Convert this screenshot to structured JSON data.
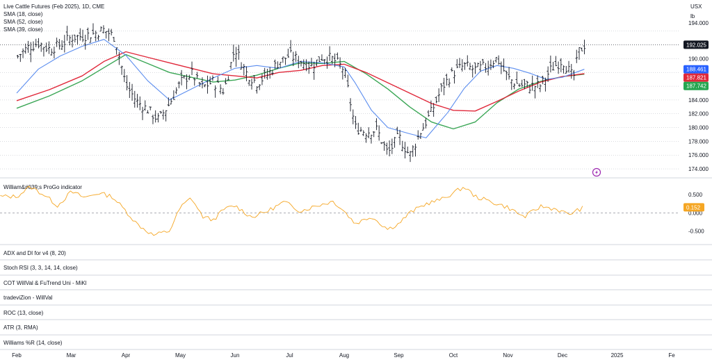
{
  "header": {
    "title": "Live Cattle Futures (Feb 2025), 1D, CME",
    "currency": "USX",
    "unit": "lb"
  },
  "indicators": [
    {
      "label": "SMA (18, close)",
      "color": "#5b8def"
    },
    {
      "label": "SMA (52, close)",
      "color": "#3aa655"
    },
    {
      "label": "SMA (39, close)",
      "color": "#e0283a"
    }
  ],
  "sub_indicator": {
    "label": "William&#039;s ProGo indicator",
    "color": "#f5a623",
    "last_value": "0.152"
  },
  "collapsed_panes": [
    "ADX and DI for v4 (8, 20)",
    "Stoch RSI (3, 3, 14, 14, close)",
    "COT WillVal & FuTrend Uni - MiKl",
    "tradeviZion - WillVal",
    "ROC (13, close)",
    "ATR (3, RMA)",
    "Williams %R (14, close)"
  ],
  "chart_data": [
    {
      "type": "ohlc",
      "title": "Live Cattle Futures (Feb 2025), 1D, CME",
      "price_axis": {
        "ylim": [
          173.5,
          196.5
        ],
        "ticks": [
          "174.000",
          "176.000",
          "178.000",
          "180.000",
          "182.000",
          "184.000",
          "186.000",
          "188.000",
          "190.000"
        ],
        "top_tick": "194.000"
      },
      "time_axis": {
        "labels": [
          "Feb",
          "Mar",
          "Apr",
          "May",
          "Jun",
          "Jul",
          "Aug",
          "Sep",
          "Oct",
          "Nov",
          "Dec",
          "2025",
          "Fe"
        ],
        "positions": [
          0,
          1,
          2,
          3,
          4,
          5,
          6,
          7,
          8,
          9,
          10,
          11,
          12
        ]
      },
      "last_price": {
        "value": 192.025,
        "label": "192.025",
        "color": "#131722"
      },
      "sma_last": [
        {
          "name": "SMA (18, close)",
          "value": 188.461,
          "label": "188.461",
          "color": "#2962ff"
        },
        {
          "name": "SMA (39, close)",
          "value": 187.821,
          "label": "187.821",
          "color": "#e0283a"
        },
        {
          "name": "SMA (52, close)",
          "value": 187.742,
          "label": "187.742",
          "color": "#26a650"
        }
      ],
      "close_path": [
        [
          0,
          190.2
        ],
        [
          0.2,
          191.6
        ],
        [
          0.4,
          192.3
        ],
        [
          0.6,
          191.4
        ],
        [
          0.8,
          192.0
        ],
        [
          1.0,
          193.1
        ],
        [
          1.2,
          193.3
        ],
        [
          1.4,
          193.6
        ],
        [
          1.6,
          194.2
        ],
        [
          1.8,
          193.1
        ],
        [
          2.0,
          186.2
        ],
        [
          2.2,
          183.8
        ],
        [
          2.4,
          182.6
        ],
        [
          2.6,
          181.1
        ],
        [
          2.8,
          183.5
        ],
        [
          3.0,
          186.5
        ],
        [
          3.2,
          187.9
        ],
        [
          3.4,
          185.8
        ],
        [
          3.6,
          186.7
        ],
        [
          3.8,
          185.3
        ],
        [
          4.0,
          191.6
        ],
        [
          4.2,
          188.0
        ],
        [
          4.4,
          186.5
        ],
        [
          4.6,
          187.7
        ],
        [
          4.8,
          189.5
        ],
        [
          5.0,
          190.5
        ],
        [
          5.2,
          189.7
        ],
        [
          5.4,
          188.9
        ],
        [
          5.6,
          190.3
        ],
        [
          5.8,
          189.9
        ],
        [
          6.0,
          188.4
        ],
        [
          6.2,
          180.0
        ],
        [
          6.4,
          179.4
        ],
        [
          6.6,
          179.7
        ],
        [
          6.8,
          176.2
        ],
        [
          7.0,
          178.7
        ],
        [
          7.2,
          175.9
        ],
        [
          7.4,
          179.4
        ],
        [
          7.6,
          182.3
        ],
        [
          7.8,
          185.9
        ],
        [
          8.0,
          188.0
        ],
        [
          8.2,
          189.0
        ],
        [
          8.4,
          188.4
        ],
        [
          8.6,
          188.9
        ],
        [
          8.8,
          190.1
        ],
        [
          9.0,
          187.2
        ],
        [
          9.2,
          186.2
        ],
        [
          9.4,
          186.0
        ],
        [
          9.6,
          186.1
        ],
        [
          9.8,
          188.6
        ],
        [
          10.0,
          189.8
        ],
        [
          10.2,
          187.1
        ],
        [
          10.3,
          191.0
        ],
        [
          10.4,
          192.0
        ]
      ],
      "sma18_path": [
        [
          0,
          185.0
        ],
        [
          0.4,
          188.5
        ],
        [
          0.8,
          190.4
        ],
        [
          1.2,
          191.8
        ],
        [
          1.6,
          192.8
        ],
        [
          2.0,
          190.5
        ],
        [
          2.4,
          186.8
        ],
        [
          2.8,
          184.0
        ],
        [
          3.2,
          185.6
        ],
        [
          3.6,
          187.2
        ],
        [
          4.0,
          188.6
        ],
        [
          4.4,
          189.0
        ],
        [
          4.8,
          188.6
        ],
        [
          5.2,
          189.6
        ],
        [
          5.6,
          189.4
        ],
        [
          6.0,
          188.8
        ],
        [
          6.2,
          186.5
        ],
        [
          6.5,
          182.5
        ],
        [
          6.8,
          180.0
        ],
        [
          7.2,
          179.1
        ],
        [
          7.5,
          178.5
        ],
        [
          7.9,
          182.2
        ],
        [
          8.2,
          185.7
        ],
        [
          8.5,
          188.2
        ],
        [
          8.8,
          189.0
        ],
        [
          9.1,
          188.6
        ],
        [
          9.4,
          187.9
        ],
        [
          9.7,
          187.0
        ],
        [
          10.0,
          187.3
        ],
        [
          10.4,
          188.46
        ]
      ],
      "sma39_path": [
        [
          0,
          183.9
        ],
        [
          0.6,
          185.5
        ],
        [
          1.2,
          187.5
        ],
        [
          1.6,
          189.6
        ],
        [
          2.0,
          191.0
        ],
        [
          2.4,
          190.2
        ],
        [
          2.8,
          189.4
        ],
        [
          3.2,
          188.6
        ],
        [
          3.6,
          187.8
        ],
        [
          4.0,
          187.5
        ],
        [
          4.4,
          187.2
        ],
        [
          4.8,
          188.0
        ],
        [
          5.2,
          188.3
        ],
        [
          5.6,
          189.0
        ],
        [
          6.0,
          189.2
        ],
        [
          6.4,
          188.0
        ],
        [
          6.8,
          186.5
        ],
        [
          7.2,
          185.0
        ],
        [
          7.6,
          183.5
        ],
        [
          8.0,
          182.5
        ],
        [
          8.4,
          182.4
        ],
        [
          8.8,
          183.8
        ],
        [
          9.2,
          185.3
        ],
        [
          9.6,
          186.6
        ],
        [
          10.0,
          187.4
        ],
        [
          10.4,
          187.82
        ]
      ],
      "sma52_path": [
        [
          0,
          182.8
        ],
        [
          0.6,
          184.6
        ],
        [
          1.2,
          186.8
        ],
        [
          1.6,
          188.7
        ],
        [
          2.0,
          190.6
        ],
        [
          2.4,
          189.3
        ],
        [
          2.8,
          188.0
        ],
        [
          3.2,
          187.3
        ],
        [
          3.6,
          186.6
        ],
        [
          4.0,
          186.9
        ],
        [
          4.4,
          187.6
        ],
        [
          4.8,
          188.6
        ],
        [
          5.2,
          189.4
        ],
        [
          5.6,
          189.3
        ],
        [
          6.0,
          189.6
        ],
        [
          6.4,
          187.8
        ],
        [
          6.8,
          185.6
        ],
        [
          7.2,
          183.0
        ],
        [
          7.6,
          180.8
        ],
        [
          8.0,
          179.8
        ],
        [
          8.4,
          180.8
        ],
        [
          8.8,
          183.6
        ],
        [
          9.2,
          185.6
        ],
        [
          9.6,
          186.7
        ],
        [
          10.0,
          187.4
        ],
        [
          10.4,
          187.74
        ]
      ]
    },
    {
      "type": "line",
      "title": "William&#039;s ProGo indicator",
      "ylim": [
        -0.8,
        0.85
      ],
      "ticks": [
        "0.500",
        "0.000",
        "-0.500"
      ],
      "zero_line": 0,
      "series": [
        {
          "name": "William&#039;s ProGo indicator",
          "color": "#f5a623",
          "points": [
            [
              0,
              0.45
            ],
            [
              0.25,
              0.72
            ],
            [
              0.5,
              0.5
            ],
            [
              0.75,
              0.2
            ],
            [
              1.0,
              0.58
            ],
            [
              1.25,
              0.42
            ],
            [
              1.5,
              0.55
            ],
            [
              1.75,
              0.45
            ],
            [
              2.0,
              0.05
            ],
            [
              2.2,
              -0.3
            ],
            [
              2.5,
              -0.62
            ],
            [
              2.8,
              -0.5
            ],
            [
              3.0,
              0.15
            ],
            [
              3.2,
              0.42
            ],
            [
              3.4,
              -0.1
            ],
            [
              3.6,
              -0.2
            ],
            [
              3.8,
              0.1
            ],
            [
              4.0,
              0.2
            ],
            [
              4.3,
              -0.12
            ],
            [
              4.6,
              0.05
            ],
            [
              4.9,
              0.3
            ],
            [
              5.2,
              0.05
            ],
            [
              5.5,
              0.2
            ],
            [
              5.8,
              0.32
            ],
            [
              6.0,
              0.05
            ],
            [
              6.2,
              -0.3
            ],
            [
              6.5,
              -0.1
            ],
            [
              6.8,
              -0.45
            ],
            [
              7.0,
              -0.3
            ],
            [
              7.2,
              0.0
            ],
            [
              7.5,
              0.25
            ],
            [
              7.8,
              0.38
            ],
            [
              8.0,
              0.55
            ],
            [
              8.2,
              0.72
            ],
            [
              8.4,
              0.45
            ],
            [
              8.7,
              0.3
            ],
            [
              9.0,
              0.15
            ],
            [
              9.3,
              -0.12
            ],
            [
              9.6,
              0.18
            ],
            [
              9.9,
              0.1
            ],
            [
              10.1,
              -0.05
            ],
            [
              10.4,
              0.152
            ]
          ]
        }
      ]
    }
  ]
}
